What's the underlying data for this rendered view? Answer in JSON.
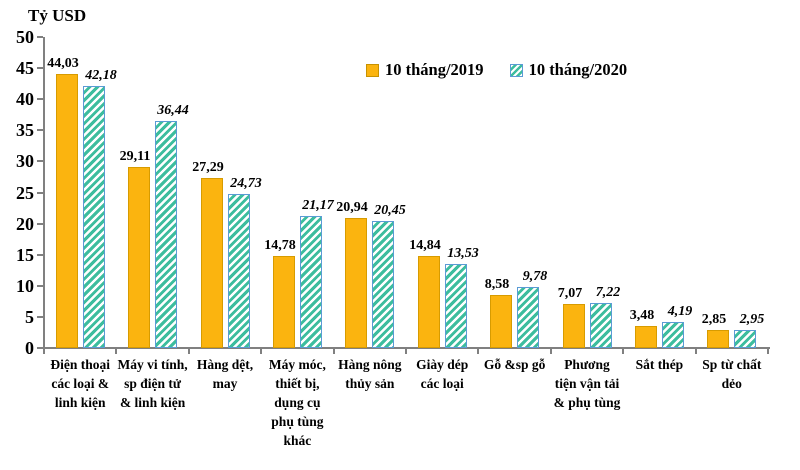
{
  "title": "Tỷ USD",
  "legend": {
    "items": [
      {
        "label": "10 tháng/2019",
        "swatch": "solid-orange-square"
      },
      {
        "label": "10 tháng/2020",
        "swatch": "teal-hatched-square"
      }
    ],
    "position": "top-center"
  },
  "colors": {
    "bar_2019_fill": "#FBB40F",
    "bar_2019_border": "#D79B00",
    "bar_2020_hatch": "#3DBD9E",
    "bar_2020_border": "#5B9BD5",
    "axis": "#808080",
    "text": "#000000",
    "background": "#FFFFFF"
  },
  "y_axis": {
    "title": "Tỷ USD",
    "min": 0,
    "max": 50,
    "step": 5,
    "ticks": [
      0,
      5,
      10,
      15,
      20,
      25,
      30,
      35,
      40,
      45,
      50
    ]
  },
  "chart_data": {
    "type": "bar",
    "title": "Tỷ USD",
    "xlabel": "",
    "ylabel": "Tỷ USD",
    "ylim": [
      0,
      50
    ],
    "grid": false,
    "legend_position": "top-center",
    "categories": [
      "Điện thoại các loại & linh kiện",
      "Máy vi tính, sp điện tử & linh kiện",
      "Hàng dệt, may",
      "Máy móc, thiết bị, dụng cụ phụ tùng khác",
      "Hàng nông thủy sản",
      "Giày dép các loại",
      "Gỗ &sp gỗ",
      "Phương tiện vận tải & phụ tùng",
      "Sắt thép",
      "Sp từ chất dẻo"
    ],
    "series": [
      {
        "name": "10 tháng/2019",
        "values": [
          44.03,
          29.11,
          27.29,
          14.78,
          20.94,
          14.84,
          8.58,
          7.07,
          3.48,
          2.85
        ],
        "labels": [
          "44,03",
          "29,11",
          "27,29",
          "14,78",
          "20,94",
          "14,84",
          "8,58",
          "7,07",
          "3,48",
          "2,85"
        ]
      },
      {
        "name": "10 tháng/2020",
        "values": [
          42.18,
          36.44,
          24.73,
          21.17,
          20.45,
          13.53,
          9.78,
          7.22,
          4.19,
          2.95
        ],
        "labels": [
          "42,18",
          "36,44",
          "24,73",
          "21,17",
          "20,45",
          "13,53",
          "9,78",
          "7,22",
          "4,19",
          "2,95"
        ]
      }
    ]
  }
}
